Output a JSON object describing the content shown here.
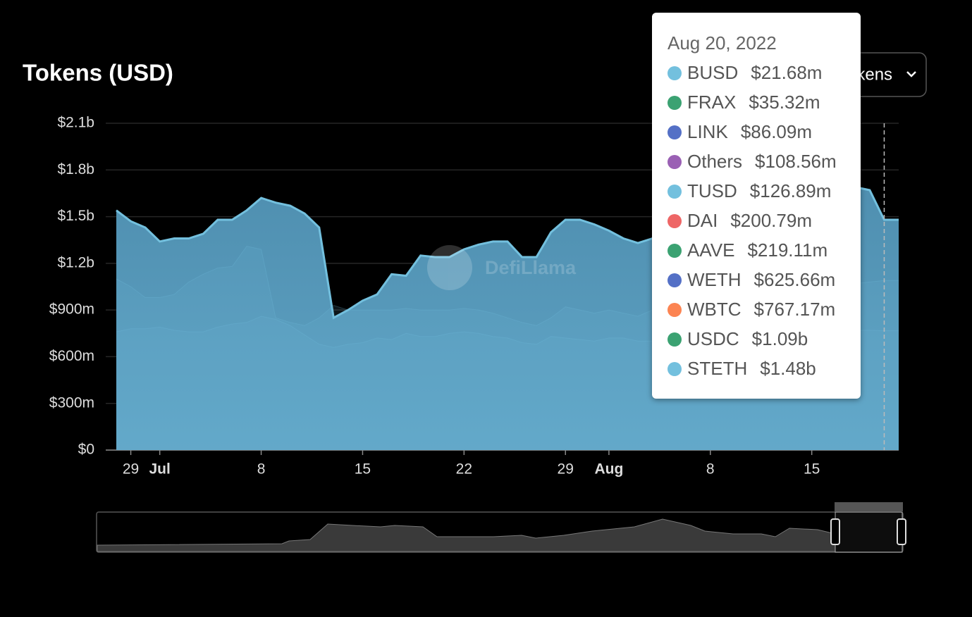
{
  "chart_data": {
    "type": "area",
    "title": "Tokens (USD)",
    "watermark": "DefiLlama",
    "selector": "Tokens",
    "x": [
      "2022-06-28",
      "2022-06-29",
      "2022-06-30",
      "2022-07-01",
      "2022-07-02",
      "2022-07-03",
      "2022-07-04",
      "2022-07-05",
      "2022-07-06",
      "2022-07-07",
      "2022-07-08",
      "2022-07-09",
      "2022-07-10",
      "2022-07-11",
      "2022-07-12",
      "2022-07-13",
      "2022-07-14",
      "2022-07-15",
      "2022-07-16",
      "2022-07-17",
      "2022-07-18",
      "2022-07-19",
      "2022-07-20",
      "2022-07-21",
      "2022-07-22",
      "2022-07-23",
      "2022-07-24",
      "2022-07-25",
      "2022-07-26",
      "2022-07-27",
      "2022-07-28",
      "2022-07-29",
      "2022-07-30",
      "2022-07-31",
      "2022-08-01",
      "2022-08-02",
      "2022-08-03",
      "2022-08-04",
      "2022-08-05",
      "2022-08-06",
      "2022-08-07",
      "2022-08-08",
      "2022-08-09",
      "2022-08-10",
      "2022-08-11",
      "2022-08-12",
      "2022-08-13",
      "2022-08-14",
      "2022-08-15",
      "2022-08-16",
      "2022-08-17",
      "2022-08-18",
      "2022-08-19",
      "2022-08-20",
      "2022-08-21"
    ],
    "xlim": [
      "2022-06-28",
      "2022-08-21"
    ],
    "xticks": [
      {
        "value": "2022-06-29",
        "label": "29"
      },
      {
        "value": "2022-07-01",
        "label": "Jul"
      },
      {
        "value": "2022-07-08",
        "label": "8"
      },
      {
        "value": "2022-07-15",
        "label": "15"
      },
      {
        "value": "2022-07-22",
        "label": "22"
      },
      {
        "value": "2022-07-29",
        "label": "29"
      },
      {
        "value": "2022-08-01",
        "label": "Aug"
      },
      {
        "value": "2022-08-08",
        "label": "8"
      },
      {
        "value": "2022-08-15",
        "label": "15"
      }
    ],
    "ylim": [
      0,
      2100000000
    ],
    "yticks": [
      {
        "value": 0,
        "label": "$0"
      },
      {
        "value": 300000000,
        "label": "$300m"
      },
      {
        "value": 600000000,
        "label": "$600m"
      },
      {
        "value": 900000000,
        "label": "$900m"
      },
      {
        "value": 1200000000,
        "label": "$1.2b"
      },
      {
        "value": 1500000000,
        "label": "$1.5b"
      },
      {
        "value": 1800000000,
        "label": "$1.8b"
      },
      {
        "value": 2100000000,
        "label": "$2.1b"
      }
    ],
    "grid": true,
    "series": [
      {
        "name": "STETH",
        "color": "#73c0de",
        "values": [
          1540000000.0,
          1470000000.0,
          1430000000.0,
          1340000000.0,
          1360000000.0,
          1360000000.0,
          1390000000.0,
          1480000000.0,
          1480000000.0,
          1540000000.0,
          1620000000.0,
          1590000000.0,
          1570000000.0,
          1520000000.0,
          1430000000.0,
          850000000.0,
          900000000.0,
          960000000.0,
          1000000000.0,
          1130000000.0,
          1120000000.0,
          1250000000.0,
          1240000000.0,
          1240000000.0,
          1290000000.0,
          1320000000.0,
          1340000000.0,
          1340000000.0,
          1240000000.0,
          1240000000.0,
          1400000000.0,
          1480000000.0,
          1480000000.0,
          1450000000.0,
          1410000000.0,
          1360000000.0,
          1330000000.0,
          1360000000.0,
          1400000000.0,
          1450000000.0,
          1500000000.0,
          1550000000.0,
          1580000000.0,
          1600000000.0,
          1550000000.0,
          1520000000.0,
          1580000000.0,
          1620000000.0,
          1650000000.0,
          1700000000.0,
          1710000000.0,
          1690000000.0,
          1670000000.0,
          1480000000.0,
          1480000000.0
        ]
      },
      {
        "name": "USDC",
        "color": "#73c0de",
        "values": [
          1100000000.0,
          1050000000.0,
          980000000.0,
          980000000.0,
          1000000000.0,
          1080000000.0,
          1130000000.0,
          1170000000.0,
          1180000000.0,
          1310000000.0,
          1290000000.0,
          850000000.0,
          820000000.0,
          800000000.0,
          850000000.0,
          930000000.0,
          900000000.0,
          900000000.0,
          900000000.0,
          900000000.0,
          910000000.0,
          900000000.0,
          900000000.0,
          900000000.0,
          910000000.0,
          900000000.0,
          880000000.0,
          850000000.0,
          820000000.0,
          800000000.0,
          850000000.0,
          920000000.0,
          900000000.0,
          880000000.0,
          900000000.0,
          880000000.0,
          860000000.0,
          900000000.0,
          920000000.0,
          950000000.0,
          980000000.0,
          1000000000.0,
          1020000000.0,
          1050000000.0,
          1050000000.0,
          1050000000.0,
          1080000000.0,
          1100000000.0,
          1100000000.0,
          1050000000.0,
          1050000000.0,
          1070000000.0,
          1080000000.0,
          1090000000.0,
          1090000000.0
        ]
      },
      {
        "name": "WBTC",
        "color": "#73c0de",
        "values": [
          760000000.0,
          780000000.0,
          780000000.0,
          790000000.0,
          770000000.0,
          760000000.0,
          760000000.0,
          790000000.0,
          810000000.0,
          820000000.0,
          860000000.0,
          840000000.0,
          800000000.0,
          740000000.0,
          680000000.0,
          660000000.0,
          680000000.0,
          690000000.0,
          720000000.0,
          710000000.0,
          750000000.0,
          730000000.0,
          730000000.0,
          750000000.0,
          760000000.0,
          750000000.0,
          730000000.0,
          720000000.0,
          690000000.0,
          680000000.0,
          730000000.0,
          720000000.0,
          710000000.0,
          700000000.0,
          720000000.0,
          720000000.0,
          700000000.0,
          700000000.0,
          720000000.0,
          740000000.0,
          750000000.0,
          760000000.0,
          770000000.0,
          760000000.0,
          760000000.0,
          770000000.0,
          780000000.0,
          780000000.0,
          790000000.0,
          780000000.0,
          770000000.0,
          770000000.0,
          770000000.0,
          767000000.0,
          767000000.0
        ]
      }
    ],
    "tooltip": {
      "date": "Aug 20, 2022",
      "items": [
        {
          "name": "BUSD",
          "color": "#73c0de",
          "value": 21680000,
          "value_label": "$21.68m"
        },
        {
          "name": "FRAX",
          "color": "#3ba272",
          "value": 35320000,
          "value_label": "$35.32m"
        },
        {
          "name": "LINK",
          "color": "#5470c6",
          "value": 86090000,
          "value_label": "$86.09m"
        },
        {
          "name": "Others",
          "color": "#9a60b4",
          "value": 108560000,
          "value_label": "$108.56m"
        },
        {
          "name": "TUSD",
          "color": "#73c0de",
          "value": 126890000,
          "value_label": "$126.89m"
        },
        {
          "name": "DAI",
          "color": "#ee6666",
          "value": 200790000,
          "value_label": "$200.79m"
        },
        {
          "name": "AAVE",
          "color": "#3ba272",
          "value": 219110000,
          "value_label": "$219.11m"
        },
        {
          "name": "WETH",
          "color": "#5470c6",
          "value": 625660000,
          "value_label": "$625.66m"
        },
        {
          "name": "WBTC",
          "color": "#fc8452",
          "value": 767170000,
          "value_label": "$767.17m"
        },
        {
          "name": "USDC",
          "color": "#3ba272",
          "value": 1090000000,
          "value_label": "$1.09b"
        },
        {
          "name": "STETH",
          "color": "#73c0de",
          "value": 1480000000,
          "value_label": "$1.48b"
        }
      ]
    }
  }
}
